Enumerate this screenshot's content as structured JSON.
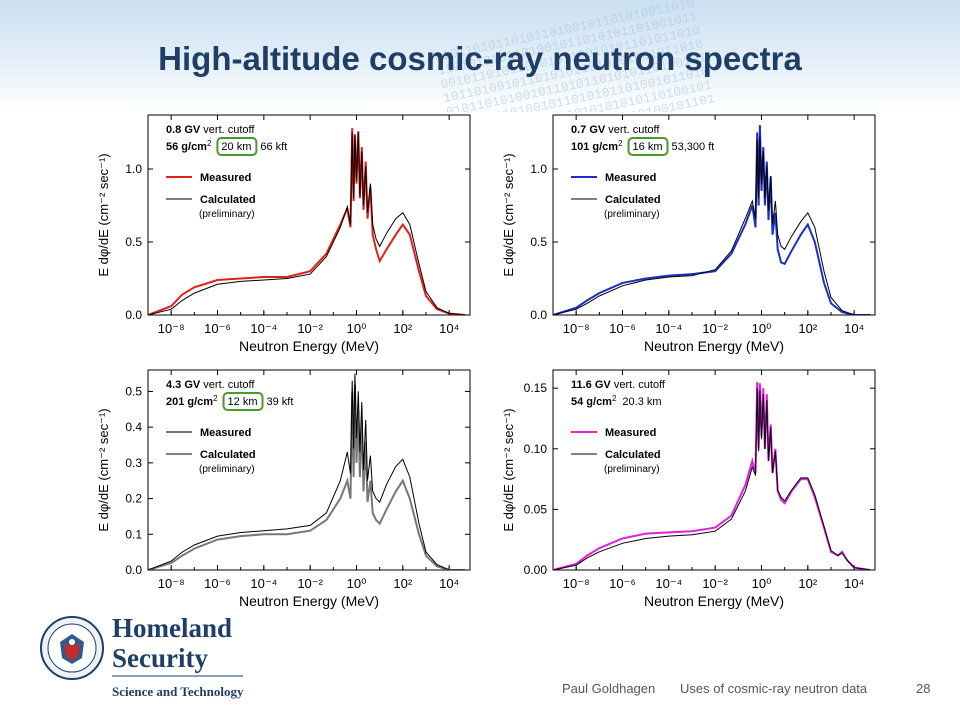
{
  "slide": {
    "title": "High-altitude cosmic-ray neutron spectra",
    "footer": {
      "author": "Paul Goldhagen",
      "subject": "Uses of cosmic-ray neutron data",
      "page": "28"
    },
    "logo": {
      "line1": "Homeland",
      "line2": "Security",
      "line3": "Science and Technology",
      "seal_text": "U.S. DEPARTMENT OF HOMELAND SECURITY"
    }
  },
  "chart_data": [
    {
      "type": "line",
      "xscale": "log",
      "xlabel": "Neutron Energy  (MeV)",
      "ylabel": "E dφ/dE  (cm⁻² sec⁻¹)",
      "x_ticks": [
        "10-8",
        "10-6",
        "10-4",
        "10-2",
        "100",
        "102",
        "104"
      ],
      "y_ticks": [
        "0.0",
        "0.5",
        "1.0"
      ],
      "ylim": [
        0,
        1.37
      ],
      "annotation": {
        "cutoff_value": "0.8 GV",
        "cutoff_label": " vert. cutoff",
        "depth": "56 g/cm",
        "depth_sup": "2",
        "altitude_circled": "20 km",
        "altitude_extra": "66 kft"
      },
      "measured_color": "#e0211b",
      "series": [
        {
          "name": "Measured",
          "x": [
            1e-09,
            1e-08,
            3e-08,
            1e-07,
            1e-06,
            1e-05,
            0.0001,
            0.001,
            0.01,
            0.05,
            0.2,
            0.4,
            0.55,
            0.65,
            0.75,
            0.85,
            1.0,
            1.2,
            1.4,
            1.7,
            2.0,
            2.5,
            3,
            4,
            5,
            7,
            10,
            20,
            50,
            100,
            200,
            500,
            1000,
            3000,
            10000,
            50000
          ],
          "y": [
            0.0,
            0.06,
            0.14,
            0.19,
            0.24,
            0.25,
            0.26,
            0.26,
            0.3,
            0.42,
            0.62,
            0.73,
            0.6,
            1.28,
            0.78,
            1.23,
            0.9,
            1.26,
            0.8,
            1.15,
            0.72,
            1.05,
            0.66,
            0.88,
            0.55,
            0.45,
            0.37,
            0.45,
            0.55,
            0.62,
            0.55,
            0.3,
            0.13,
            0.04,
            0.01,
            0.0
          ]
        },
        {
          "name": "Calculated",
          "x": [
            1e-09,
            1e-08,
            3e-08,
            1e-07,
            1e-06,
            1e-05,
            0.0001,
            0.001,
            0.01,
            0.05,
            0.2,
            0.4,
            0.55,
            0.65,
            0.75,
            0.85,
            1.0,
            1.2,
            1.4,
            1.7,
            2.0,
            2.5,
            3,
            4,
            5,
            7,
            10,
            20,
            50,
            100,
            200,
            500,
            1000,
            3000,
            10000,
            50000
          ],
          "y": [
            0.0,
            0.04,
            0.1,
            0.15,
            0.21,
            0.23,
            0.24,
            0.25,
            0.28,
            0.4,
            0.6,
            0.74,
            0.62,
            1.25,
            0.8,
            1.24,
            0.92,
            1.25,
            0.82,
            1.12,
            0.75,
            1.02,
            0.7,
            0.9,
            0.62,
            0.52,
            0.47,
            0.56,
            0.66,
            0.7,
            0.62,
            0.35,
            0.16,
            0.05,
            0.01,
            0.0
          ]
        }
      ],
      "legend": {
        "measured": "Measured",
        "calculated": "Calculated",
        "note": "(preliminary)"
      }
    },
    {
      "type": "line",
      "xscale": "log",
      "xlabel": "Neutron Energy  (MeV)",
      "ylabel": "E dφ/dE  (cm⁻² sec⁻¹)",
      "x_ticks": [
        "10-8",
        "10-6",
        "10-4",
        "10-2",
        "100",
        "102",
        "104"
      ],
      "y_ticks": [
        "0.0",
        "0.5",
        "1.0"
      ],
      "ylim": [
        0,
        1.37
      ],
      "annotation": {
        "cutoff_value": "0.7 GV",
        "cutoff_label": " vert. cutoff",
        "depth": "101 g/cm",
        "depth_sup": "2",
        "altitude_circled": "16 km",
        "altitude_extra": "53,300 ft"
      },
      "measured_color": "#1a2fc8",
      "series": [
        {
          "name": "Measured",
          "x": [
            1e-09,
            1e-08,
            3e-08,
            1e-07,
            1e-06,
            1e-05,
            0.0001,
            0.001,
            0.01,
            0.05,
            0.2,
            0.4,
            0.55,
            0.65,
            0.75,
            0.85,
            1.0,
            1.2,
            1.4,
            1.7,
            2.0,
            2.5,
            3,
            4,
            5,
            7,
            10,
            20,
            50,
            100,
            200,
            500,
            1000,
            3000,
            10000,
            50000
          ],
          "y": [
            0.0,
            0.05,
            0.1,
            0.15,
            0.22,
            0.25,
            0.27,
            0.28,
            0.3,
            0.42,
            0.62,
            0.75,
            0.6,
            1.25,
            0.75,
            1.3,
            0.85,
            1.15,
            0.75,
            1.05,
            0.65,
            0.95,
            0.55,
            0.7,
            0.45,
            0.36,
            0.35,
            0.44,
            0.55,
            0.62,
            0.5,
            0.22,
            0.08,
            0.02,
            0.0,
            0.0
          ]
        },
        {
          "name": "Calculated",
          "x": [
            1e-09,
            1e-08,
            3e-08,
            1e-07,
            1e-06,
            1e-05,
            0.0001,
            0.001,
            0.01,
            0.05,
            0.2,
            0.4,
            0.55,
            0.65,
            0.75,
            0.85,
            1.0,
            1.2,
            1.4,
            1.7,
            2.0,
            2.5,
            3,
            4,
            5,
            7,
            10,
            20,
            50,
            100,
            200,
            500,
            1000,
            3000,
            10000,
            50000
          ],
          "y": [
            0.0,
            0.04,
            0.08,
            0.13,
            0.2,
            0.24,
            0.26,
            0.27,
            0.31,
            0.44,
            0.66,
            0.78,
            0.66,
            1.2,
            0.8,
            1.22,
            0.9,
            1.12,
            0.8,
            1.02,
            0.72,
            0.95,
            0.62,
            0.78,
            0.55,
            0.47,
            0.45,
            0.54,
            0.64,
            0.7,
            0.6,
            0.3,
            0.12,
            0.03,
            0.0,
            0.0
          ]
        }
      ],
      "legend": {
        "measured": "Measured",
        "calculated": "Calculated",
        "note": "(preliminary)"
      }
    },
    {
      "type": "line",
      "xscale": "log",
      "xlabel": "Neutron Energy  (MeV)",
      "ylabel": "E dφ/dE  (cm⁻² sec⁻¹)",
      "x_ticks": [
        "10-8",
        "10-6",
        "10-4",
        "10-2",
        "100",
        "102",
        "104"
      ],
      "y_ticks": [
        "0.0",
        "0.1",
        "0.2",
        "0.3",
        "0.4",
        "0.5"
      ],
      "ylim": [
        0,
        0.56
      ],
      "annotation": {
        "cutoff_value": "4.3 GV",
        "cutoff_label": " vert. cutoff",
        "depth": "201 g/cm",
        "depth_sup": "2",
        "altitude_circled": "12 km",
        "altitude_extra": "39 kft"
      },
      "measured_color": "#777777",
      "series": [
        {
          "name": "Measured",
          "x": [
            1e-09,
            1e-08,
            3e-08,
            1e-07,
            1e-06,
            1e-05,
            0.0001,
            0.001,
            0.01,
            0.05,
            0.2,
            0.4,
            0.55,
            0.65,
            0.75,
            0.85,
            1.0,
            1.2,
            1.4,
            1.7,
            2.0,
            2.5,
            3,
            4,
            5,
            7,
            10,
            20,
            50,
            100,
            200,
            500,
            1000,
            3000,
            10000,
            50000
          ],
          "y": [
            0.0,
            0.02,
            0.04,
            0.06,
            0.085,
            0.095,
            0.1,
            0.1,
            0.11,
            0.14,
            0.2,
            0.25,
            0.2,
            0.5,
            0.26,
            0.52,
            0.3,
            0.45,
            0.26,
            0.42,
            0.22,
            0.36,
            0.19,
            0.25,
            0.16,
            0.14,
            0.13,
            0.17,
            0.22,
            0.25,
            0.2,
            0.1,
            0.04,
            0.01,
            0.0,
            0.0
          ]
        },
        {
          "name": "Calculated",
          "x": [
            1e-09,
            1e-08,
            3e-08,
            1e-07,
            1e-06,
            1e-05,
            0.0001,
            0.001,
            0.01,
            0.05,
            0.2,
            0.4,
            0.55,
            0.65,
            0.75,
            0.85,
            1.0,
            1.2,
            1.4,
            1.7,
            2.0,
            2.5,
            3,
            4,
            5,
            7,
            10,
            20,
            50,
            100,
            200,
            500,
            1000,
            3000,
            10000,
            50000
          ],
          "y": [
            0.0,
            0.025,
            0.05,
            0.07,
            0.095,
            0.105,
            0.11,
            0.115,
            0.125,
            0.16,
            0.25,
            0.33,
            0.27,
            0.53,
            0.34,
            0.55,
            0.37,
            0.5,
            0.33,
            0.47,
            0.28,
            0.42,
            0.25,
            0.32,
            0.22,
            0.2,
            0.19,
            0.24,
            0.29,
            0.31,
            0.26,
            0.13,
            0.05,
            0.015,
            0.0,
            0.0
          ]
        }
      ],
      "legend": {
        "measured": "Measured",
        "calculated": "Calculated",
        "note": "(preliminary)"
      }
    },
    {
      "type": "line",
      "xscale": "log",
      "xlabel": "Neutron Energy  (MeV)",
      "ylabel": "E dφ/dE  (cm⁻² sec⁻¹)",
      "x_ticks": [
        "10-8",
        "10-6",
        "10-4",
        "10-2",
        "100",
        "102",
        "104"
      ],
      "y_ticks": [
        "0.00",
        "0.05",
        "0.10",
        "0.15"
      ],
      "ylim": [
        0,
        0.165
      ],
      "annotation": {
        "cutoff_value": "11.6 GV",
        "cutoff_label": " vert. cutoff",
        "depth": "54 g/cm",
        "depth_sup": "2",
        "altitude_circled": "",
        "altitude_extra": "20.3 km"
      },
      "measured_color": "#e020e0",
      "series": [
        {
          "name": "Measured",
          "x": [
            1e-09,
            1e-08,
            3e-08,
            1e-07,
            1e-06,
            1e-05,
            0.0001,
            0.001,
            0.01,
            0.05,
            0.2,
            0.4,
            0.55,
            0.65,
            0.75,
            0.85,
            1.0,
            1.2,
            1.4,
            1.7,
            2.0,
            2.5,
            3,
            4,
            5,
            7,
            10,
            20,
            50,
            100,
            200,
            500,
            1000,
            2000,
            3000,
            5000,
            10000,
            50000
          ],
          "y": [
            0.0,
            0.005,
            0.012,
            0.018,
            0.026,
            0.03,
            0.031,
            0.032,
            0.035,
            0.045,
            0.07,
            0.09,
            0.08,
            0.155,
            0.1,
            0.154,
            0.11,
            0.15,
            0.1,
            0.145,
            0.09,
            0.12,
            0.08,
            0.1,
            0.065,
            0.058,
            0.055,
            0.065,
            0.075,
            0.075,
            0.06,
            0.035,
            0.015,
            0.012,
            0.015,
            0.008,
            0.002,
            0.0
          ]
        },
        {
          "name": "Calculated",
          "x": [
            1e-09,
            1e-08,
            3e-08,
            1e-07,
            1e-06,
            1e-05,
            0.0001,
            0.001,
            0.01,
            0.05,
            0.2,
            0.4,
            0.55,
            0.65,
            0.75,
            0.85,
            1.0,
            1.2,
            1.4,
            1.7,
            2.0,
            2.5,
            3,
            4,
            5,
            7,
            10,
            20,
            50,
            100,
            200,
            500,
            1000,
            2000,
            3000,
            5000,
            10000,
            50000
          ],
          "y": [
            0.0,
            0.004,
            0.01,
            0.015,
            0.022,
            0.026,
            0.028,
            0.029,
            0.032,
            0.042,
            0.065,
            0.085,
            0.078,
            0.15,
            0.098,
            0.148,
            0.108,
            0.145,
            0.1,
            0.14,
            0.09,
            0.118,
            0.08,
            0.098,
            0.066,
            0.06,
            0.057,
            0.066,
            0.076,
            0.076,
            0.062,
            0.036,
            0.016,
            0.012,
            0.014,
            0.008,
            0.002,
            0.0
          ]
        }
      ],
      "legend": {
        "measured": "Measured",
        "calculated": "Calculated",
        "note": "(preliminary)"
      }
    }
  ]
}
